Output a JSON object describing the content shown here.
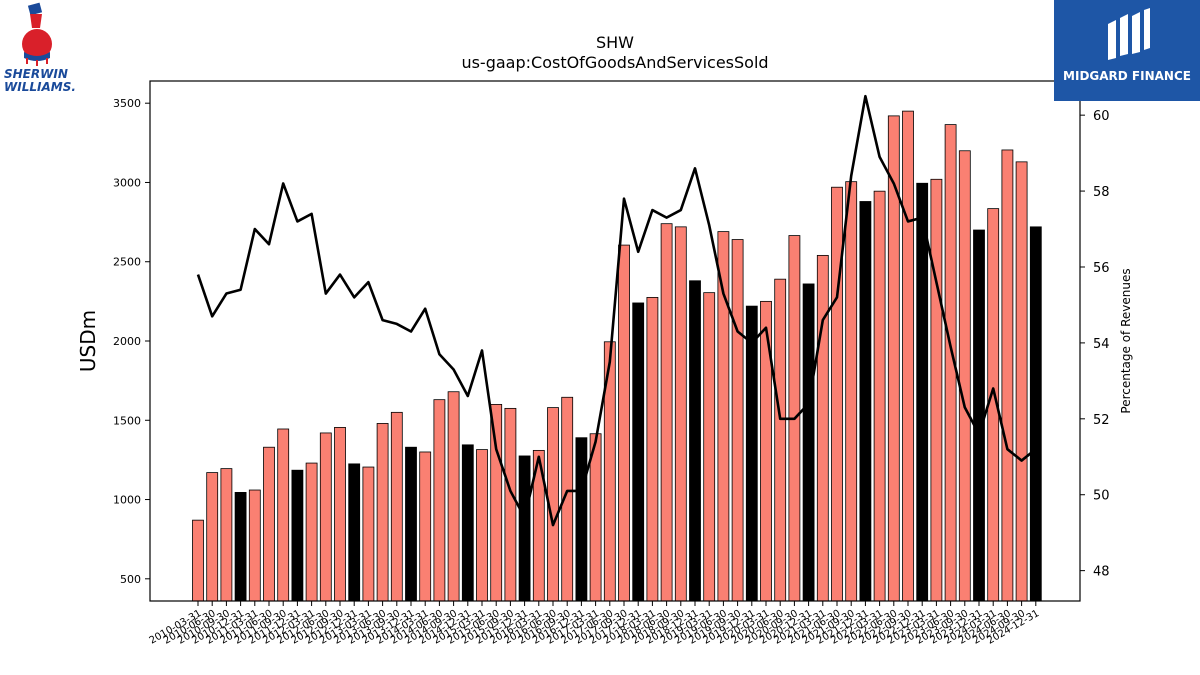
{
  "logos": {
    "left": {
      "line1": "SHERWIN",
      "line2": "WILLIAMS."
    },
    "right": {
      "name": "MIDGARD FINANCE"
    }
  },
  "colors": {
    "bar_default": "#fa8072",
    "bar_highlight": "#000000",
    "line": "#000000",
    "logo_right_bg": "#1e56a6"
  },
  "chart_data": {
    "type": "bar",
    "title": "SHW",
    "subtitle": "us-gaap:CostOfGoodsAndServicesSold",
    "ylabel": "USDm",
    "y2label": "Percentage of Revenues",
    "ylim": [
      360,
      3640
    ],
    "y2lim": [
      47.2,
      60.9
    ],
    "yticks": [
      500,
      1000,
      1500,
      2000,
      2500,
      3000,
      3500
    ],
    "y2ticks": [
      48,
      50,
      52,
      54,
      56,
      58,
      60
    ],
    "categories": [
      "2010-03-31",
      "2010-06-30",
      "2010-09-30",
      "2010-12-31",
      "2011-03-31",
      "2011-06-30",
      "2011-09-30",
      "2011-12-31",
      "2012-03-31",
      "2012-06-30",
      "2012-09-30",
      "2012-12-31",
      "2013-03-31",
      "2013-06-30",
      "2013-09-30",
      "2013-12-31",
      "2014-03-31",
      "2014-06-30",
      "2014-09-30",
      "2014-12-31",
      "2015-03-31",
      "2015-06-30",
      "2015-09-30",
      "2015-12-31",
      "2016-03-31",
      "2016-06-30",
      "2016-09-30",
      "2016-12-31",
      "2017-03-31",
      "2017-06-30",
      "2017-09-30",
      "2017-12-31",
      "2018-03-31",
      "2018-06-30",
      "2018-09-30",
      "2018-12-31",
      "2019-03-31",
      "2019-06-30",
      "2019-09-30",
      "2019-12-31",
      "2020-03-31",
      "2020-06-30",
      "2020-09-30",
      "2020-12-31",
      "2021-03-31",
      "2021-06-30",
      "2021-09-30",
      "2021-12-31",
      "2022-03-31",
      "2022-06-30",
      "2022-09-30",
      "2022-12-31",
      "2023-03-31",
      "2023-06-30",
      "2023-09-30",
      "2023-12-31",
      "2024-03-31",
      "2024-06-30",
      "2024-09-30",
      "2024-12-31"
    ],
    "xtick_labels": [
      "2010-03-31",
      "2010-06-30",
      "2010-09-30",
      "2010-12-31",
      "2011-03-31",
      "2011-06-30",
      "2011-09-30",
      "2011-12-31",
      "2012-03-31",
      "2012-06-30",
      "2012-09-30",
      "2012-12-31",
      "2013-03-31",
      "2013-06-30",
      "2013-09-30",
      "2013-12-31",
      "2014-03-31",
      "2014-06-30",
      "2014-09-30",
      "2014-12-31",
      "2015-03-31",
      "2015-06-30",
      "2015-09-30",
      "2015-12-31",
      "2016-03-31",
      "2016-06-30",
      "2016-09-30",
      "2016-12-31",
      "2017-03-31",
      "2017-06-30",
      "2017-09-30",
      "2017-12-31",
      "2018-03-31",
      "2018-06-30",
      "2018-09-30",
      "2018-12-31",
      "2019-03-31",
      "2019-06-30",
      "2019-09-30",
      "2019-12-31",
      "2020-03-31",
      "2020-06-30",
      "2020-09-30",
      "2020-12-31",
      "2021-03-31",
      "2021-06-30",
      "2021-09-30",
      "2021-12-31",
      "2022-03-31",
      "2022-06-30",
      "2022-09-30",
      "2022-12-31",
      "2023-03-31",
      "2023-06-30",
      "2023-09-30",
      "2023-12-31",
      "2024-03-31",
      "2024-06-30",
      "2024-09-30",
      "2024-12-31"
    ],
    "values": [
      870,
      1170,
      1195,
      1045,
      1060,
      1330,
      1445,
      1185,
      1230,
      1420,
      1455,
      1225,
      1205,
      1480,
      1550,
      1330,
      1300,
      1630,
      1680,
      1345,
      1315,
      1600,
      1575,
      1275,
      1310,
      1580,
      1645,
      1390,
      1415,
      1995,
      2605,
      2240,
      2275,
      2740,
      2720,
      2380,
      2305,
      2690,
      2640,
      2220,
      2250,
      2390,
      2665,
      2360,
      2540,
      2970,
      3005,
      2880,
      2945,
      3420,
      3450,
      2995,
      3020,
      3365,
      3200,
      2700,
      2835,
      3205,
      3130,
      2720
    ],
    "highlight": [
      false,
      false,
      false,
      true,
      false,
      false,
      false,
      true,
      false,
      false,
      false,
      true,
      false,
      false,
      false,
      true,
      false,
      false,
      false,
      true,
      false,
      false,
      false,
      true,
      false,
      false,
      false,
      true,
      false,
      false,
      false,
      true,
      false,
      false,
      false,
      true,
      false,
      false,
      false,
      true,
      false,
      false,
      false,
      true,
      false,
      false,
      false,
      true,
      false,
      false,
      false,
      true,
      false,
      false,
      false,
      true,
      false,
      false,
      false,
      true
    ],
    "line_series": {
      "values": [
        55.8,
        54.7,
        55.3,
        55.4,
        57.0,
        56.6,
        58.2,
        57.2,
        57.4,
        55.3,
        55.8,
        55.2,
        55.6,
        54.6,
        54.5,
        54.3,
        54.9,
        53.7,
        53.3,
        52.6,
        53.8,
        51.2,
        50.1,
        49.4,
        51.0,
        49.2,
        50.1,
        50.1,
        51.4,
        53.5,
        57.8,
        56.4,
        57.5,
        57.3,
        57.5,
        58.6,
        57.1,
        55.3,
        54.3,
        54.0,
        54.4,
        52.0,
        52.0,
        52.4,
        54.6,
        55.2,
        58.4,
        60.5,
        58.9,
        58.2,
        57.2,
        57.3,
        55.6,
        53.9,
        52.3,
        51.6,
        52.8,
        51.2,
        50.9,
        51.2
      ]
    }
  }
}
